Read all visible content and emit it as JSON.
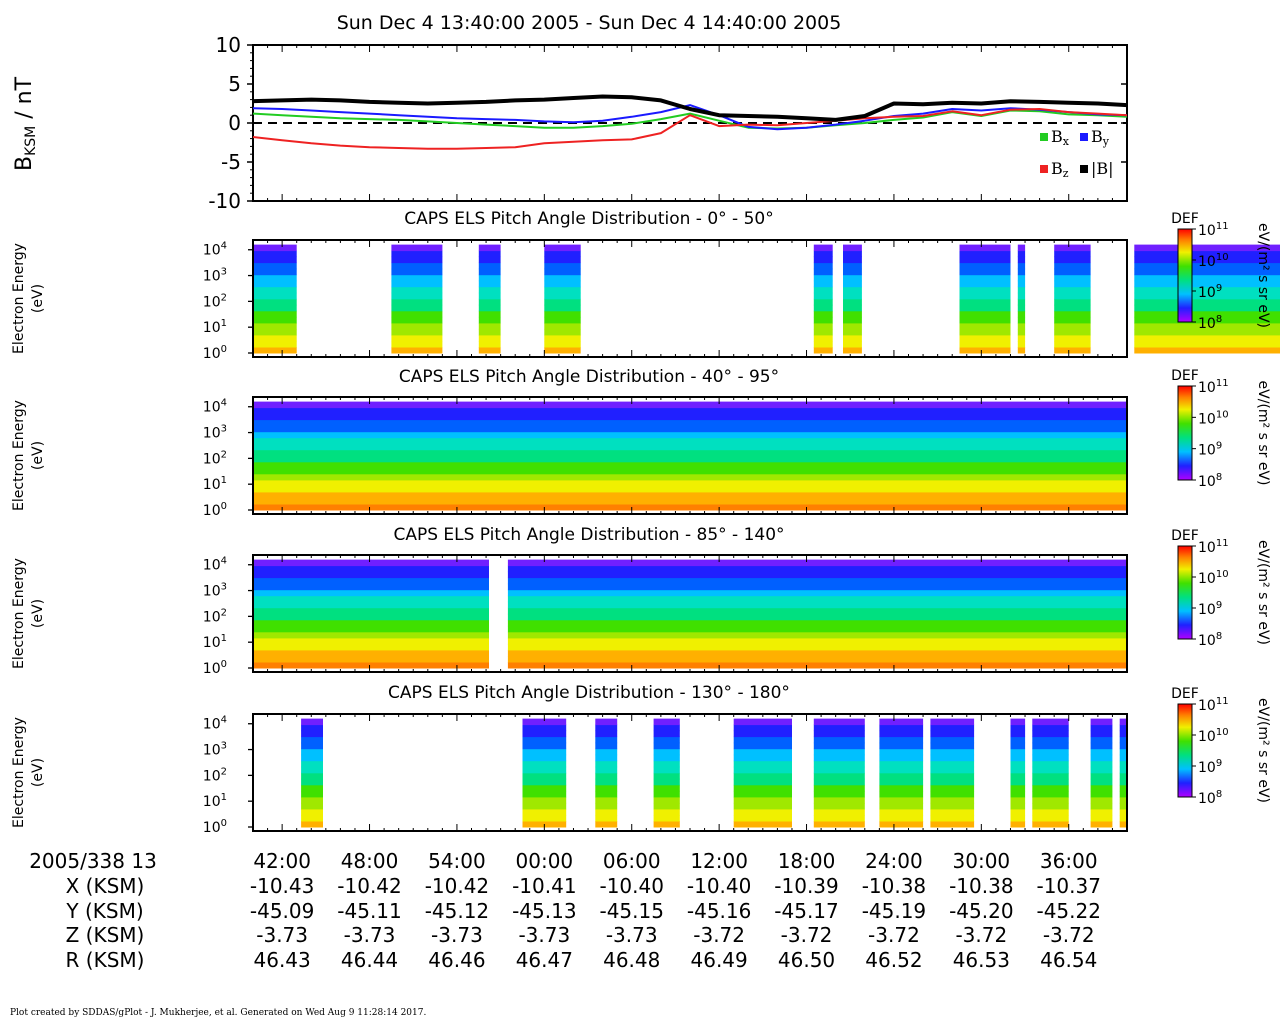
{
  "title": "Sun Dec 4 13:40:00 2005 - Sun Dec 4 14:40:00 2005",
  "footer": "Plot created by SDDAS/gPlot - J. Mukherjee, et al.  Generated on Wed Aug 9 11:28:14 2017.",
  "colors": {
    "bx": "#22cc22",
    "by": "#1a1aff",
    "bz": "#ee2222",
    "bmag": "#000000"
  },
  "chart_data": [
    {
      "type": "line",
      "ylabel_main": "B",
      "ylabel_sub": "KSM",
      "ylabel_unit": " / nT",
      "ylim": [
        -10,
        10
      ],
      "yticks": [
        "10",
        "5",
        "0",
        "-5",
        "-10"
      ],
      "ytick_values": [
        10,
        5,
        0,
        -5,
        -10
      ],
      "legend_placement": "bottom-right",
      "legend": [
        {
          "key": "bx",
          "base": "B",
          "sub": "x"
        },
        {
          "key": "by",
          "base": "B",
          "sub": "y"
        },
        {
          "key": "bz",
          "base": "B",
          "sub": "z"
        },
        {
          "key": "bmag",
          "label": "|B|"
        }
      ],
      "x_minutes": [
        0,
        2,
        4,
        6,
        8,
        10,
        12,
        14,
        16,
        18,
        20,
        22,
        24,
        26,
        28,
        30,
        32,
        34,
        36,
        38,
        40,
        42,
        44,
        46,
        48,
        50,
        52,
        54,
        56,
        58,
        60
      ],
      "series": [
        {
          "name": "Bx",
          "key": "bx",
          "values": [
            1.2,
            1.0,
            0.8,
            0.6,
            0.5,
            0.4,
            0.2,
            0.0,
            -0.2,
            -0.4,
            -0.6,
            -0.6,
            -0.4,
            -0.1,
            0.5,
            1.2,
            0.3,
            -0.6,
            -0.7,
            -0.6,
            -0.3,
            0.0,
            0.4,
            0.7,
            1.4,
            0.9,
            1.6,
            1.5,
            1.1,
            1.0,
            0.8
          ]
        },
        {
          "name": "By",
          "key": "by",
          "values": [
            1.9,
            1.8,
            1.6,
            1.4,
            1.2,
            1.0,
            0.8,
            0.6,
            0.5,
            0.4,
            0.2,
            0.1,
            0.3,
            0.8,
            1.4,
            2.3,
            1.0,
            -0.5,
            -0.8,
            -0.6,
            -0.2,
            0.3,
            0.9,
            1.2,
            1.8,
            1.6,
            1.9,
            1.7,
            1.4,
            1.1,
            1.0
          ]
        },
        {
          "name": "Bz",
          "key": "bz",
          "values": [
            -1.8,
            -2.2,
            -2.6,
            -2.9,
            -3.1,
            -3.2,
            -3.3,
            -3.3,
            -3.2,
            -3.1,
            -2.6,
            -2.4,
            -2.2,
            -2.1,
            -1.3,
            1.0,
            -0.4,
            -0.2,
            -0.3,
            0.0,
            0.3,
            0.6,
            0.8,
            0.9,
            1.5,
            1.0,
            1.7,
            1.8,
            1.4,
            1.2,
            1.0
          ]
        },
        {
          "name": "|B|",
          "key": "bmag",
          "values": [
            2.8,
            2.9,
            3.0,
            2.9,
            2.7,
            2.6,
            2.5,
            2.6,
            2.7,
            2.9,
            3.0,
            3.2,
            3.4,
            3.3,
            2.9,
            1.8,
            1.0,
            0.9,
            0.8,
            0.6,
            0.4,
            0.9,
            2.5,
            2.4,
            2.6,
            2.5,
            2.8,
            2.7,
            2.6,
            2.5,
            2.3
          ]
        }
      ]
    },
    {
      "type": "heatmap",
      "title": "CAPS ELS Pitch Angle Distribution - 0° - 50°",
      "ylabel": [
        "Electron Energy",
        "(eV)"
      ],
      "log_y_decades": [
        0,
        1,
        2,
        3,
        4
      ],
      "coverage_minutes": [
        [
          0,
          3
        ],
        [
          9.5,
          13
        ],
        [
          15.5,
          17
        ],
        [
          20,
          22.5
        ],
        [
          38.5,
          39.8
        ],
        [
          40.5,
          41.8
        ],
        [
          48.5,
          52
        ],
        [
          52.5,
          53
        ],
        [
          55,
          57.5
        ],
        [
          60.5,
          72
        ]
      ],
      "colorbar": {
        "label": "DEF",
        "unit": "eV/(m² s sr eV)",
        "ticks": [
          "11",
          "10",
          "9",
          "8"
        ]
      }
    },
    {
      "type": "heatmap",
      "title": "CAPS ELS Pitch Angle Distribution - 40° - 95°",
      "ylabel": [
        "Electron Energy",
        "(eV)"
      ],
      "log_y_decades": [
        0,
        1,
        2,
        3,
        4
      ],
      "coverage_minutes": [
        [
          0,
          60
        ]
      ],
      "colorbar": {
        "label": "DEF",
        "unit": "eV/(m² s sr eV)",
        "ticks": [
          "11",
          "10",
          "9",
          "8"
        ]
      }
    },
    {
      "type": "heatmap",
      "title": "CAPS ELS Pitch Angle Distribution - 85° - 140°",
      "ylabel": [
        "Electron Energy",
        "(eV)"
      ],
      "log_y_decades": [
        0,
        1,
        2,
        3,
        4
      ],
      "coverage_minutes": [
        [
          0,
          16.2
        ],
        [
          17.5,
          60
        ]
      ],
      "colorbar": {
        "label": "DEF",
        "unit": "eV/(m² s sr eV)",
        "ticks": [
          "11",
          "10",
          "9",
          "8"
        ]
      }
    },
    {
      "type": "heatmap",
      "title": "CAPS ELS Pitch Angle Distribution - 130° - 180°",
      "ylabel": [
        "Electron Energy",
        "(eV)"
      ],
      "log_y_decades": [
        0,
        1,
        2,
        3,
        4
      ],
      "coverage_minutes": [
        [
          3.3,
          4.8
        ],
        [
          18.5,
          21.5
        ],
        [
          23.5,
          25
        ],
        [
          27.5,
          29.3
        ],
        [
          33,
          37
        ],
        [
          38.5,
          42
        ],
        [
          43,
          46
        ],
        [
          46.5,
          49.5
        ],
        [
          52,
          53
        ],
        [
          53.5,
          56
        ],
        [
          57.5,
          59
        ],
        [
          59.5,
          60
        ]
      ],
      "colorbar": {
        "label": "DEF",
        "unit": "eV/(m² s sr eV)",
        "ticks": [
          "11",
          "10",
          "9",
          "8"
        ]
      }
    }
  ],
  "ephemeris": {
    "rows": [
      {
        "label": "2005/338 13",
        "values": [
          "42:00",
          "48:00",
          "54:00",
          "00:00",
          "06:00",
          "12:00",
          "18:00",
          "24:00",
          "30:00",
          "36:00"
        ]
      },
      {
        "label": "X (KSM)",
        "values": [
          "-10.43",
          "-10.42",
          "-10.42",
          "-10.41",
          "-10.40",
          "-10.40",
          "-10.39",
          "-10.38",
          "-10.38",
          "-10.37"
        ]
      },
      {
        "label": "Y (KSM)",
        "values": [
          "-45.09",
          "-45.11",
          "-45.12",
          "-45.13",
          "-45.15",
          "-45.16",
          "-45.17",
          "-45.19",
          "-45.20",
          "-45.22"
        ]
      },
      {
        "label": "Z (KSM)",
        "values": [
          "-3.73",
          "-3.73",
          "-3.73",
          "-3.73",
          "-3.73",
          "-3.72",
          "-3.72",
          "-3.72",
          "-3.72",
          "-3.72"
        ]
      },
      {
        "label": "R (KSM)",
        "values": [
          "46.43",
          "46.44",
          "46.46",
          "46.47",
          "46.48",
          "46.49",
          "46.50",
          "46.52",
          "46.53",
          "46.54"
        ]
      }
    ]
  }
}
